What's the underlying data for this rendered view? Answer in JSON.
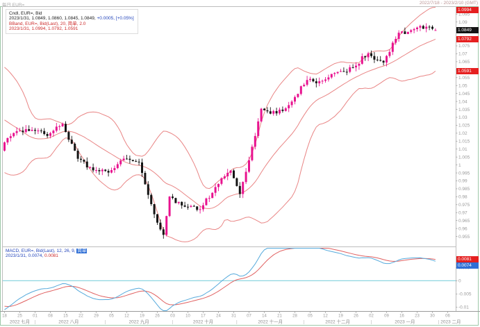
{
  "titlebar": {
    "left": "每日 EUR=",
    "right": "2022/7/18 - 2023/2/10 (GMT)"
  },
  "main_legend": {
    "line1": "Cndl, EUR=, Bid",
    "line2_black": "2023/1/31, 1.0849, 1.0860, 1.0845, 1.0849,",
    "line2_blue": "+0.0005, [+0.05%]",
    "line3": "BBand, EUR=, Bid(Last), 20, 简单, 2.0",
    "line4": "2023/1/31, 1.0994, 1.0792, 1.0591"
  },
  "macd_legend": {
    "line1_pre": "MACD, EUR=, Bid(Last), 12, 26, 9,",
    "line1_badge": "简单",
    "line2_blue": "2023/1/31, 0.0074,",
    "line2_red": "0.0081"
  },
  "axis_badges": {
    "bb_upper": "1.0994",
    "last": "1.0849",
    "bb_mid": "1.0792",
    "bb_lower": "1.0591",
    "macd_signal": "0.0081",
    "macd_line": "0.0074"
  },
  "colors": {
    "up_candle": "#e8138f",
    "down_candle": "#141414",
    "bollinger": "#e98585",
    "macd_line": "#56aadc",
    "macd_signal": "#e06060",
    "zero_line": "#8ed6e0",
    "frame_grey": "#bdbdbd",
    "axis_text": "#9a9a9a",
    "badge_red": "#e52020",
    "badge_black": "#141414",
    "badge_blue": "#2f6fd6"
  },
  "chart_data": [
    {
      "type": "candlestick",
      "symbol": "EUR=",
      "field": "Bid",
      "interval": "daily",
      "title": "Cndl, EUR=, Bid with BBand(20, simple, 2.0)",
      "date_range": [
        "2022/7/18",
        "2023/1/31"
      ],
      "ylim": [
        0.95,
        1.0995
      ],
      "ytick_min": 0.955,
      "ytick_max": 1.095,
      "ytick_step": 0.005,
      "noise_seed": 987654321,
      "noise_amp": 0.0045,
      "wick_amp": 0.0026,
      "last_candle": {
        "date": "2023/1/31",
        "open": 1.0849,
        "high": 1.086,
        "low": 1.0845,
        "close": 1.0849,
        "change": "+0.0005",
        "change_pct": "+0.05%"
      },
      "bollinger": {
        "period": 20,
        "stdev": 2.0,
        "ma_type": "简单",
        "upper": 1.0994,
        "middle": 1.0792,
        "lower": 1.0591
      },
      "swing_low": {
        "index": 52,
        "low": 0.9536
      },
      "anchors": [
        [
          0,
          1.0142
        ],
        [
          4,
          1.0213
        ],
        [
          9,
          1.0221
        ],
        [
          14,
          1.0183
        ],
        [
          19,
          1.0259
        ],
        [
          24,
          1.0039
        ],
        [
          29,
          0.9966
        ],
        [
          34,
          0.9952
        ],
        [
          39,
          1.004
        ],
        [
          44,
          1.0016
        ],
        [
          49,
          0.969
        ],
        [
          52,
          0.956
        ],
        [
          54,
          0.9801
        ],
        [
          59,
          0.9737
        ],
        [
          64,
          0.9721
        ],
        [
          69,
          0.9861
        ],
        [
          74,
          0.9965
        ],
        [
          77,
          0.9817
        ],
        [
          79,
          0.9957
        ],
        [
          84,
          1.0354
        ],
        [
          89,
          1.0325
        ],
        [
          94,
          1.0399
        ],
        [
          99,
          1.0535
        ],
        [
          104,
          1.053
        ],
        [
          109,
          1.0586
        ],
        [
          114,
          1.0614
        ],
        [
          119,
          1.0703
        ],
        [
          124,
          1.0645
        ],
        [
          129,
          1.0833
        ],
        [
          134,
          1.0855
        ],
        [
          139,
          1.087
        ],
        [
          141,
          1.0849
        ]
      ],
      "pre_anchors": [
        [
          -19,
          1.043
        ],
        [
          -12,
          1.048
        ],
        [
          -9,
          1.027
        ],
        [
          -4,
          1.004
        ],
        [
          -1,
          1.009
        ]
      ]
    },
    {
      "type": "line",
      "name": "MACD",
      "params": [
        12,
        26,
        9
      ],
      "ma_type": "简单",
      "ylim": [
        -0.0115,
        0.0125
      ],
      "ticks": [
        0.005,
        0,
        -0.005,
        -0.01
      ],
      "last": {
        "macd": 0.0074,
        "signal": 0.0081
      },
      "seed_offsets": {
        "ema12": 0.002,
        "ema26": 0.008,
        "signal": 0
      }
    }
  ],
  "xaxis": {
    "mondays": [
      [
        0,
        "18"
      ],
      [
        5,
        "25"
      ],
      [
        10,
        "01"
      ],
      [
        15,
        "08"
      ],
      [
        20,
        "15"
      ],
      [
        25,
        "22"
      ],
      [
        30,
        "29"
      ],
      [
        35,
        "05"
      ],
      [
        40,
        "12"
      ],
      [
        45,
        "19"
      ],
      [
        50,
        "26"
      ],
      [
        55,
        "03"
      ],
      [
        60,
        "10"
      ],
      [
        65,
        "17"
      ],
      [
        70,
        "24"
      ],
      [
        75,
        "31"
      ],
      [
        80,
        "07"
      ],
      [
        85,
        "14"
      ],
      [
        90,
        "21"
      ],
      [
        95,
        "28"
      ],
      [
        100,
        "05"
      ],
      [
        105,
        "12"
      ],
      [
        110,
        "19"
      ],
      [
        115,
        "26"
      ],
      [
        120,
        "02"
      ],
      [
        125,
        "09"
      ],
      [
        130,
        "16"
      ],
      [
        135,
        "23"
      ],
      [
        140,
        "30"
      ],
      [
        145,
        "06"
      ]
    ],
    "month_boundaries": [
      10,
      33,
      55,
      76,
      98,
      120,
      142
    ],
    "months": [
      [
        5,
        "2022 七月"
      ],
      [
        21,
        "2022 八月"
      ],
      [
        44,
        "2022 九月"
      ],
      [
        65,
        "2022 十月"
      ],
      [
        87,
        "2022 十一月"
      ],
      [
        109,
        "2022 十二月"
      ],
      [
        131,
        "2023 一月"
      ],
      [
        146,
        "2023 二月"
      ]
    ]
  }
}
